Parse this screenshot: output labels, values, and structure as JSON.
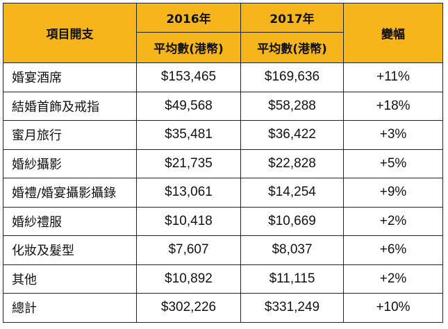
{
  "header": {
    "item_label": "項目開支",
    "year_2016": "2016年",
    "year_2017": "2017年",
    "change_label": "變幅",
    "avg_2016": "平均數(港幣)",
    "avg_2017": "平均數(港幣)"
  },
  "rows": [
    {
      "item": "婚宴酒席",
      "v2016": "$153,465",
      "v2017": "$169,636",
      "change": "+11%"
    },
    {
      "item": "結婚首飾及戒指",
      "v2016": "$49,568",
      "v2017": "$58,288",
      "change": "+18%"
    },
    {
      "item": "蜜月旅行",
      "v2016": "$35,481",
      "v2017": "$36,422",
      "change": "+3%"
    },
    {
      "item": "婚紗攝影",
      "v2016": "$21,735",
      "v2017": "$22,828",
      "change": "+5%"
    },
    {
      "item": "婚禮/婚宴攝影攝錄",
      "v2016": "$13,061",
      "v2017": "$14,254",
      "change": "+9%"
    },
    {
      "item": "婚紗禮服",
      "v2016": "$10,418",
      "v2017": "$10,669",
      "change": "+2%"
    },
    {
      "item": "化妝及髮型",
      "v2016": "$7,607",
      "v2017": "$8,037",
      "change": "+6%"
    },
    {
      "item": "其他",
      "v2016": "$10,892",
      "v2017": "$11,115",
      "change": "+2%"
    },
    {
      "item": "總計",
      "v2016": "$302,226",
      "v2017": "$331,249",
      "change": "+10%"
    }
  ],
  "colors": {
    "header_bg": "#f6b51a",
    "border": "#222222"
  }
}
